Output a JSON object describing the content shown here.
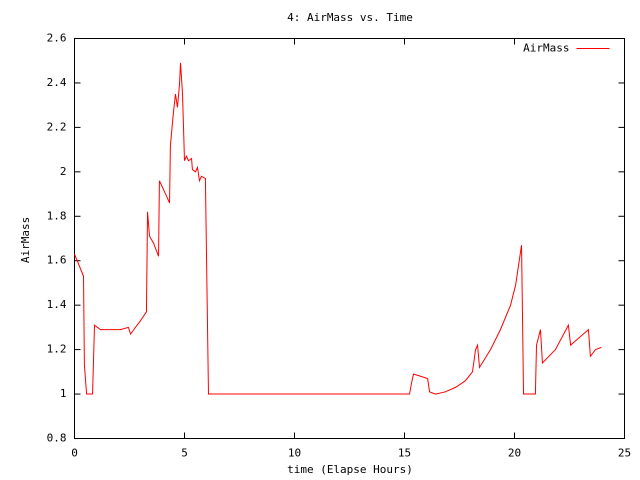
{
  "chart_data": {
    "type": "line",
    "title": "4: AirMass vs. Time",
    "x_label": "time (Elapse Hours)",
    "y_label": "AirMass",
    "xlim": [
      0,
      25
    ],
    "xticks": [
      0,
      5,
      10,
      15,
      20,
      25
    ],
    "ylim": [
      0.8,
      2.6
    ],
    "yticks": [
      0.8,
      1,
      1.2,
      1.4,
      1.6,
      1.8,
      2,
      2.2,
      2.4,
      2.6
    ],
    "grid": false,
    "legend": "top-right",
    "series": [
      {
        "name": "AirMass",
        "color": "#ff0000",
        "x": [
          0,
          0.41,
          0.45,
          0.55,
          0.82,
          0.91,
          1.18,
          1.64,
          2.09,
          2.45,
          2.55,
          2.77,
          3.0,
          3.27,
          3.32,
          3.41,
          3.59,
          3.82,
          3.86,
          4.0,
          4.14,
          4.32,
          4.36,
          4.5,
          4.59,
          4.68,
          4.77,
          4.82,
          4.91,
          5.0,
          5.09,
          5.18,
          5.32,
          5.36,
          5.5,
          5.59,
          5.68,
          5.77,
          5.95,
          6.09,
          15.23,
          15.32,
          15.41,
          15.73,
          16.05,
          16.14,
          16.41,
          16.86,
          17.32,
          17.77,
          18.09,
          18.23,
          18.32,
          18.41,
          18.91,
          19.36,
          19.82,
          20.05,
          20.32,
          20.41,
          20.95,
          21.0,
          21.18,
          21.27,
          21.86,
          22.45,
          22.55,
          23.36,
          23.45,
          23.68,
          23.95
        ],
        "values": [
          1.63,
          1.53,
          1.13,
          1.0,
          1.0,
          1.31,
          1.29,
          1.29,
          1.29,
          1.3,
          1.27,
          1.3,
          1.33,
          1.37,
          1.82,
          1.71,
          1.68,
          1.62,
          1.96,
          1.93,
          1.9,
          1.86,
          2.12,
          2.27,
          2.35,
          2.29,
          2.39,
          2.49,
          2.35,
          2.05,
          2.07,
          2.05,
          2.06,
          2.01,
          2.0,
          2.02,
          1.96,
          1.98,
          1.97,
          1.0,
          1.0,
          1.05,
          1.09,
          1.08,
          1.07,
          1.01,
          1.0,
          1.01,
          1.03,
          1.06,
          1.1,
          1.2,
          1.22,
          1.12,
          1.2,
          1.29,
          1.4,
          1.49,
          1.67,
          1.0,
          1.0,
          1.22,
          1.29,
          1.14,
          1.2,
          1.31,
          1.22,
          1.29,
          1.17,
          1.2,
          1.21
        ]
      }
    ]
  }
}
